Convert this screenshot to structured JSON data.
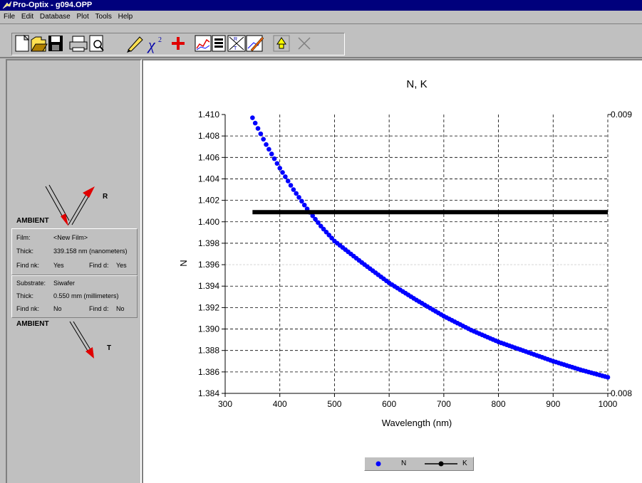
{
  "window": {
    "title": "Pro-Optix - g094.OPP"
  },
  "menu": [
    "File",
    "Edit",
    "Database",
    "Plot",
    "Tools",
    "Help"
  ],
  "toolbar": {
    "buttons": [
      "new-icon",
      "open-icon",
      "save-icon",
      "print-icon",
      "print-preview-icon",
      "edit-pencil-icon",
      "chi-square-icon",
      "add-cross-icon",
      "chart-icon",
      "report-icon",
      "reflect-transmit-icon",
      "edit-chart-icon",
      "lamp-icon",
      "close-x-icon"
    ]
  },
  "stack": {
    "top_medium": "AMBIENT",
    "bottom_medium": "AMBIENT",
    "reflect_label": "R",
    "transmit_label": "T",
    "film": {
      "name_label": "Film:",
      "name_value": "<New Film>",
      "thick_label": "Thick:",
      "thick_value": "339.158 nm (nanometers)",
      "findnk_label": "Find nk:",
      "findnk_value": "Yes",
      "findd_label": "Find d:",
      "findd_value": "Yes"
    },
    "substrate": {
      "name_label": "Substrate:",
      "name_value": "Siwafer",
      "thick_label": "Thick:",
      "thick_value": "0.550 mm (millimeters)",
      "findnk_label": "Find nk:",
      "findnk_value": "No",
      "findd_label": "Find d:",
      "findd_value": "No"
    }
  },
  "chart_data": {
    "type": "line",
    "title": "N, K",
    "xlabel": "Wavelength (nm)",
    "ylabel": "N",
    "xlim": [
      300,
      1000
    ],
    "ylim": [
      1.384,
      1.41
    ],
    "y2lim": [
      0.008,
      0.009
    ],
    "x_ticks": [
      "300",
      "400",
      "500",
      "600",
      "700",
      "800",
      "900",
      "1000"
    ],
    "y_ticks": [
      "1.384",
      "1.386",
      "1.388",
      "1.390",
      "1.392",
      "1.394",
      "1.396",
      "1.398",
      "1.400",
      "1.402",
      "1.404",
      "1.406",
      "1.408",
      "1.410"
    ],
    "y2_ticks": [
      "0.008",
      "0.009"
    ],
    "grid": true,
    "legend_position": "bottom-center",
    "series": [
      {
        "name": "N",
        "color": "#0000ff",
        "axis": "left",
        "x": [
          350,
          375,
          400,
          425,
          450,
          475,
          500,
          550,
          600,
          650,
          700,
          750,
          800,
          850,
          900,
          950,
          1000
        ],
        "y": [
          1.4097,
          1.4072,
          1.405,
          1.403,
          1.4012,
          1.3996,
          1.3982,
          1.3962,
          1.3943,
          1.3927,
          1.3912,
          1.3899,
          1.3888,
          1.3879,
          1.387,
          1.3862,
          1.3855
        ]
      },
      {
        "name": "K",
        "color": "#000000",
        "axis": "right",
        "x": [
          350,
          1000
        ],
        "y": [
          0.00865,
          0.00865
        ]
      }
    ]
  },
  "legend": {
    "n_label": "N",
    "k_label": "K"
  }
}
